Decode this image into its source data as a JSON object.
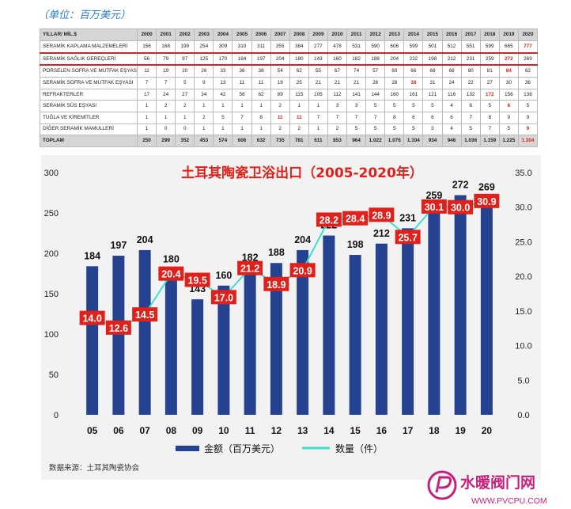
{
  "unit_note": "（单位：百万美元）",
  "table": {
    "header_label": "YILLAR/ MİL.$",
    "years": [
      "2000",
      "2001",
      "2002",
      "2003",
      "2004",
      "2005",
      "2006",
      "2007",
      "2008",
      "2009",
      "2010",
      "2011",
      "2012",
      "2013",
      "2014",
      "2015",
      "2016",
      "2017",
      "2018",
      "2019",
      "2020"
    ],
    "rows": [
      {
        "label": "SERAMİK KAPLAMA MALZEMELERİ",
        "values": [
          "156",
          "168",
          "199",
          "254",
          "309",
          "310",
          "311",
          "355",
          "384",
          "277",
          "478",
          "531",
          "590",
          "606",
          "599",
          "501",
          "512",
          "551",
          "599",
          "665",
          "777"
        ],
        "red": [
          20
        ],
        "highlight": false
      },
      {
        "label": "SERAMİK SAĞLIK GEREÇLERİ",
        "values": [
          "56",
          "79",
          "97",
          "125",
          "170",
          "184",
          "197",
          "204",
          "180",
          "143",
          "160",
          "182",
          "188",
          "204",
          "222",
          "198",
          "212",
          "231",
          "259",
          "272",
          "269"
        ],
        "red": [
          19
        ],
        "highlight": true
      },
      {
        "label": "PORSELEN SOFRA VE MUTFAK EŞYASI",
        "values": [
          "11",
          "19",
          "20",
          "26",
          "33",
          "36",
          "38",
          "54",
          "62",
          "55",
          "67",
          "74",
          "57",
          "60",
          "66",
          "68",
          "68",
          "80",
          "81",
          "84",
          "62"
        ],
        "red": [
          19
        ],
        "highlight": false
      },
      {
        "label": "SERAMİK SOFRA VE MUTFAK EŞYASI",
        "values": [
          "7",
          "7",
          "5",
          "9",
          "13",
          "11",
          "11",
          "19",
          "25",
          "21",
          "21",
          "21",
          "26",
          "28",
          "38",
          "31",
          "24",
          "22",
          "27",
          "30",
          "36"
        ],
        "red": [
          14
        ],
        "highlight": false
      },
      {
        "label": "REFRAKTERLER",
        "values": [
          "17",
          "24",
          "27",
          "34",
          "42",
          "56",
          "62",
          "89",
          "115",
          "105",
          "112",
          "141",
          "144",
          "160",
          "161",
          "121",
          "116",
          "132",
          "172",
          "156",
          "138"
        ],
        "red": [
          18
        ],
        "highlight": false
      },
      {
        "label": "SERAMİK SÜS EŞYASI",
        "values": [
          "1",
          "2",
          "2",
          "1",
          "1",
          "1",
          "1",
          "2",
          "1",
          "1",
          "3",
          "3",
          "5",
          "5",
          "5",
          "5",
          "4",
          "6",
          "5",
          "6",
          "5"
        ],
        "red": [
          19
        ],
        "highlight": false
      },
      {
        "label": "TUĞLA VE KİREMİTLER",
        "values": [
          "1",
          "1",
          "1",
          "2",
          "5",
          "7",
          "8",
          "11",
          "11",
          "7",
          "7",
          "7",
          "7",
          "8",
          "6",
          "6",
          "6",
          "7",
          "8",
          "9",
          "9"
        ],
        "red": [
          7,
          8
        ],
        "highlight": false
      },
      {
        "label": "DİĞER SERAMİK MAMULLERİ",
        "values": [
          "1",
          "0",
          "0",
          "1",
          "1",
          "1",
          "1",
          "2",
          "2",
          "1",
          "2",
          "5",
          "5",
          "5",
          "5",
          "3",
          "4",
          "5",
          "7",
          "5",
          "9"
        ],
        "red": [
          20
        ],
        "highlight": false
      },
      {
        "label": "TOPLAM",
        "values": [
          "250",
          "299",
          "352",
          "453",
          "574",
          "606",
          "632",
          "735",
          "781",
          "611",
          "853",
          "964",
          "1.022",
          "1.076",
          "1.104",
          "934",
          "946",
          "1.036",
          "1.159",
          "1.225",
          "1.304"
        ],
        "red": [
          20
        ],
        "highlight": false,
        "total": true
      }
    ]
  },
  "chart_data": {
    "type": "bar",
    "title": "土耳其陶瓷卫浴出口（2005-2020年）",
    "categories": [
      "05",
      "06",
      "07",
      "08",
      "09",
      "10",
      "11",
      "12",
      "13",
      "14",
      "15",
      "16",
      "17",
      "18",
      "19",
      "20"
    ],
    "series": [
      {
        "name": "金额（百万美元）",
        "type": "bar",
        "axis": "left",
        "color": "#24428f",
        "values": [
          184,
          197,
          204,
          180,
          143,
          160,
          182,
          188,
          204,
          222,
          198,
          212,
          231,
          259,
          272,
          269
        ]
      },
      {
        "name": "数量（件）",
        "type": "line",
        "axis": "right",
        "color": "#3ee0cf",
        "values": [
          14.0,
          12.6,
          14.5,
          20.4,
          19.5,
          17.0,
          21.2,
          18.9,
          20.9,
          28.2,
          28.4,
          28.9,
          25.7,
          30.1,
          30.0,
          30.9
        ]
      }
    ],
    "left_axis": {
      "ylim": [
        0,
        300
      ],
      "ticks": [
        "0",
        "50",
        "100",
        "150",
        "200",
        "250",
        "300"
      ]
    },
    "right_axis": {
      "ylim": [
        0,
        35
      ],
      "ticks": [
        "0.0",
        "5.0",
        "10.0",
        "15.0",
        "20.0",
        "25.0",
        "30.0",
        "35.0"
      ]
    },
    "grid": false,
    "legend_position": "bottom",
    "label_color": "#e0211b"
  },
  "source_note": "数据来源：土耳其陶瓷协会",
  "watermark": {
    "brand": "水暖阀门网",
    "url": "WWW.PVCPU.COM",
    "logo_color": "#c71f7c"
  }
}
